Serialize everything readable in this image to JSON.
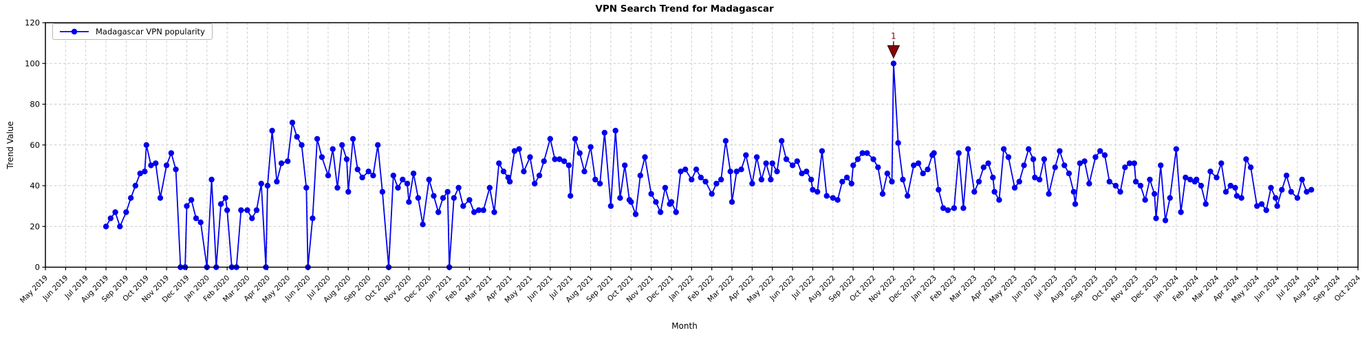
{
  "chart_data": {
    "type": "line",
    "title": "VPN Search Trend for Madagascar",
    "xlabel": "Month",
    "ylabel": "Trend Value",
    "grid": true,
    "legend_position": "upper-left",
    "ylim": [
      0,
      120
    ],
    "yticks": [
      0,
      20,
      40,
      60,
      80,
      100,
      120
    ],
    "x_tick_labels": [
      "May 2019",
      "Jun 2019",
      "Jul 2019",
      "Aug 2019",
      "Sep 2019",
      "Oct 2019",
      "Nov 2019",
      "Dec 2019",
      "Jan 2020",
      "Feb 2020",
      "Mar 2020",
      "Apr 2020",
      "May 2020",
      "Jun 2020",
      "Jul 2020",
      "Aug 2020",
      "Sep 2020",
      "Oct 2020",
      "Nov 2020",
      "Dec 2020",
      "Jan 2021",
      "Feb 2021",
      "Mar 2021",
      "Apr 2021",
      "May 2021",
      "Jun 2021",
      "Jul 2021",
      "Aug 2021",
      "Sep 2021",
      "Oct 2021",
      "Nov 2021",
      "Dec 2021",
      "Jan 2022",
      "Feb 2022",
      "Mar 2022",
      "Apr 2022",
      "May 2022",
      "Jun 2022",
      "Jul 2022",
      "Aug 2022",
      "Sep 2022",
      "Oct 2022",
      "Nov 2022",
      "Dec 2022",
      "Jan 2023",
      "Feb 2023",
      "Mar 2023",
      "Apr 2023",
      "May 2023",
      "Jun 2023",
      "Jul 2023",
      "Aug 2023",
      "Sep 2023",
      "Oct 2023",
      "Nov 2023",
      "Dec 2023",
      "Jan 2024",
      "Feb 2024",
      "Mar 2024",
      "Apr 2024",
      "May 2024",
      "Jun 2024",
      "Jul 2024",
      "Aug 2024",
      "Sep 2024",
      "Oct 2024"
    ],
    "x_week_step_months": 0.23,
    "series": [
      {
        "name": "Madagascar VPN popularity",
        "color": "#0000ee",
        "marker": "circle",
        "weekly_values_by_month": [
          [],
          [],
          [],
          [
            20,
            24,
            27,
            20
          ],
          [
            27,
            34,
            40,
            46,
            47
          ],
          [
            60,
            50,
            51,
            34
          ],
          [
            50,
            56,
            48,
            0,
            0
          ],
          [
            30,
            33,
            24,
            22
          ],
          [
            0,
            43,
            0,
            31,
            34
          ],
          [
            28,
            0,
            0,
            28
          ],
          [
            28,
            24,
            28,
            41,
            0
          ],
          [
            40,
            67,
            42,
            51
          ],
          [
            52,
            71,
            64,
            60,
            39
          ],
          [
            0,
            24,
            63,
            54
          ],
          [
            45,
            58,
            39,
            60,
            53
          ],
          [
            37,
            63,
            48,
            44
          ],
          [
            47,
            45,
            60,
            37
          ],
          [
            0,
            45,
            39,
            43,
            41
          ],
          [
            32,
            46,
            34,
            21
          ],
          [
            43,
            35,
            27,
            34,
            37
          ],
          [
            0,
            34,
            39,
            30
          ],
          [
            33,
            27,
            28,
            28
          ],
          [
            39,
            27,
            51,
            47,
            44
          ],
          [
            42,
            57,
            58,
            47
          ],
          [
            54,
            41,
            45,
            52
          ],
          [
            63,
            53,
            53,
            52,
            50
          ],
          [
            35,
            63,
            56,
            47
          ],
          [
            59,
            43,
            41,
            66
          ],
          [
            30,
            67,
            34,
            50,
            33
          ],
          [
            32,
            26,
            45,
            54
          ],
          [
            36,
            32,
            27,
            39,
            31
          ],
          [
            32,
            27,
            47,
            48
          ],
          [
            43,
            48,
            44,
            42
          ],
          [
            36,
            41,
            43,
            62,
            47
          ],
          [
            32,
            47,
            48,
            55
          ],
          [
            41,
            54,
            43,
            51,
            43
          ],
          [
            51,
            47,
            62,
            53
          ],
          [
            50,
            52,
            46,
            47,
            43
          ],
          [
            38,
            37,
            57,
            35
          ],
          [
            34,
            33,
            42,
            44,
            41
          ],
          [
            50,
            53,
            56,
            56
          ],
          [
            53,
            49,
            36,
            46,
            42
          ],
          [
            100,
            61,
            43,
            35
          ],
          [
            50,
            51,
            46,
            48,
            55
          ],
          [
            56,
            38,
            29,
            28
          ],
          [
            29,
            56,
            29,
            58
          ],
          [
            37,
            42,
            49,
            51,
            44
          ],
          [
            37,
            33,
            58,
            54
          ],
          [
            39,
            42,
            50,
            58,
            53
          ],
          [
            44,
            43,
            53,
            36
          ],
          [
            49,
            57,
            50,
            46,
            37
          ],
          [
            31,
            51,
            52,
            41
          ],
          [
            54,
            57,
            55,
            42
          ],
          [
            40,
            37,
            49,
            51,
            51
          ],
          [
            42,
            40,
            33,
            43,
            36
          ],
          [
            24,
            50,
            23,
            34
          ],
          [
            58,
            27,
            44,
            43,
            42
          ],
          [
            43,
            40,
            31,
            47
          ],
          [
            44,
            51,
            37,
            40,
            39
          ],
          [
            35,
            34,
            53,
            49
          ],
          [
            30,
            31,
            28,
            39,
            34
          ],
          [
            30,
            38,
            45,
            37
          ],
          [
            34,
            43,
            37,
            38
          ],
          [],
          [],
          []
        ]
      }
    ],
    "annotation": {
      "label": "1",
      "month": "Nov 2022",
      "point_index": 0,
      "value": 100,
      "color": "#8b0000",
      "marker": "triangle-down"
    }
  }
}
